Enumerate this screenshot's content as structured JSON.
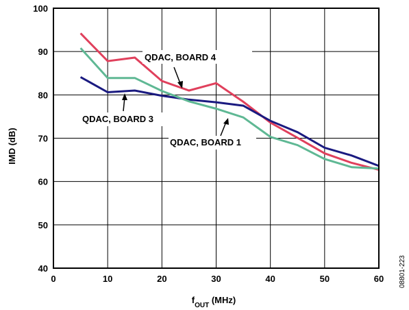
{
  "chart_data": {
    "type": "line",
    "xlabel_main": "f",
    "xlabel_sub": "OUT",
    "xlabel_rest": " (MHz)",
    "ylabel": "IMD (dB)",
    "xlim": [
      0,
      60
    ],
    "ylim": [
      40,
      100
    ],
    "xticks": [
      0,
      10,
      20,
      30,
      40,
      50,
      60
    ],
    "yticks": [
      40,
      50,
      60,
      70,
      80,
      90,
      100
    ],
    "grid": true,
    "figure_id": "08801-223",
    "series": [
      {
        "name": "QDAC, BOARD 4",
        "color": "#e0405c",
        "x": [
          5,
          10,
          15,
          20,
          25,
          30,
          35,
          40,
          45,
          50,
          55,
          60
        ],
        "y": [
          94.2,
          87.8,
          88.6,
          83.2,
          81.0,
          82.7,
          78.4,
          73.6,
          70.1,
          66.5,
          64.3,
          62.7
        ]
      },
      {
        "name": "QDAC, BOARD 3",
        "color": "#1a1a80",
        "x": [
          5,
          10,
          15,
          20,
          25,
          30,
          35,
          40,
          45,
          50,
          55,
          60
        ],
        "y": [
          84.1,
          80.6,
          81.0,
          79.8,
          78.9,
          78.3,
          77.5,
          74.0,
          71.4,
          67.8,
          66.0,
          63.6
        ]
      },
      {
        "name": "QDAC, BOARD 1",
        "color": "#5fb894",
        "x": [
          5,
          10,
          15,
          20,
          25,
          30,
          35,
          40,
          45,
          50,
          55,
          60
        ],
        "y": [
          90.8,
          83.9,
          83.9,
          80.9,
          78.5,
          76.8,
          74.8,
          70.3,
          68.4,
          65.2,
          63.3,
          63.0
        ]
      }
    ],
    "annotations": [
      {
        "text": "QDAC, BOARD 4"
      },
      {
        "text": "QDAC, BOARD 3"
      },
      {
        "text": "QDAC, BOARD 1"
      }
    ]
  }
}
